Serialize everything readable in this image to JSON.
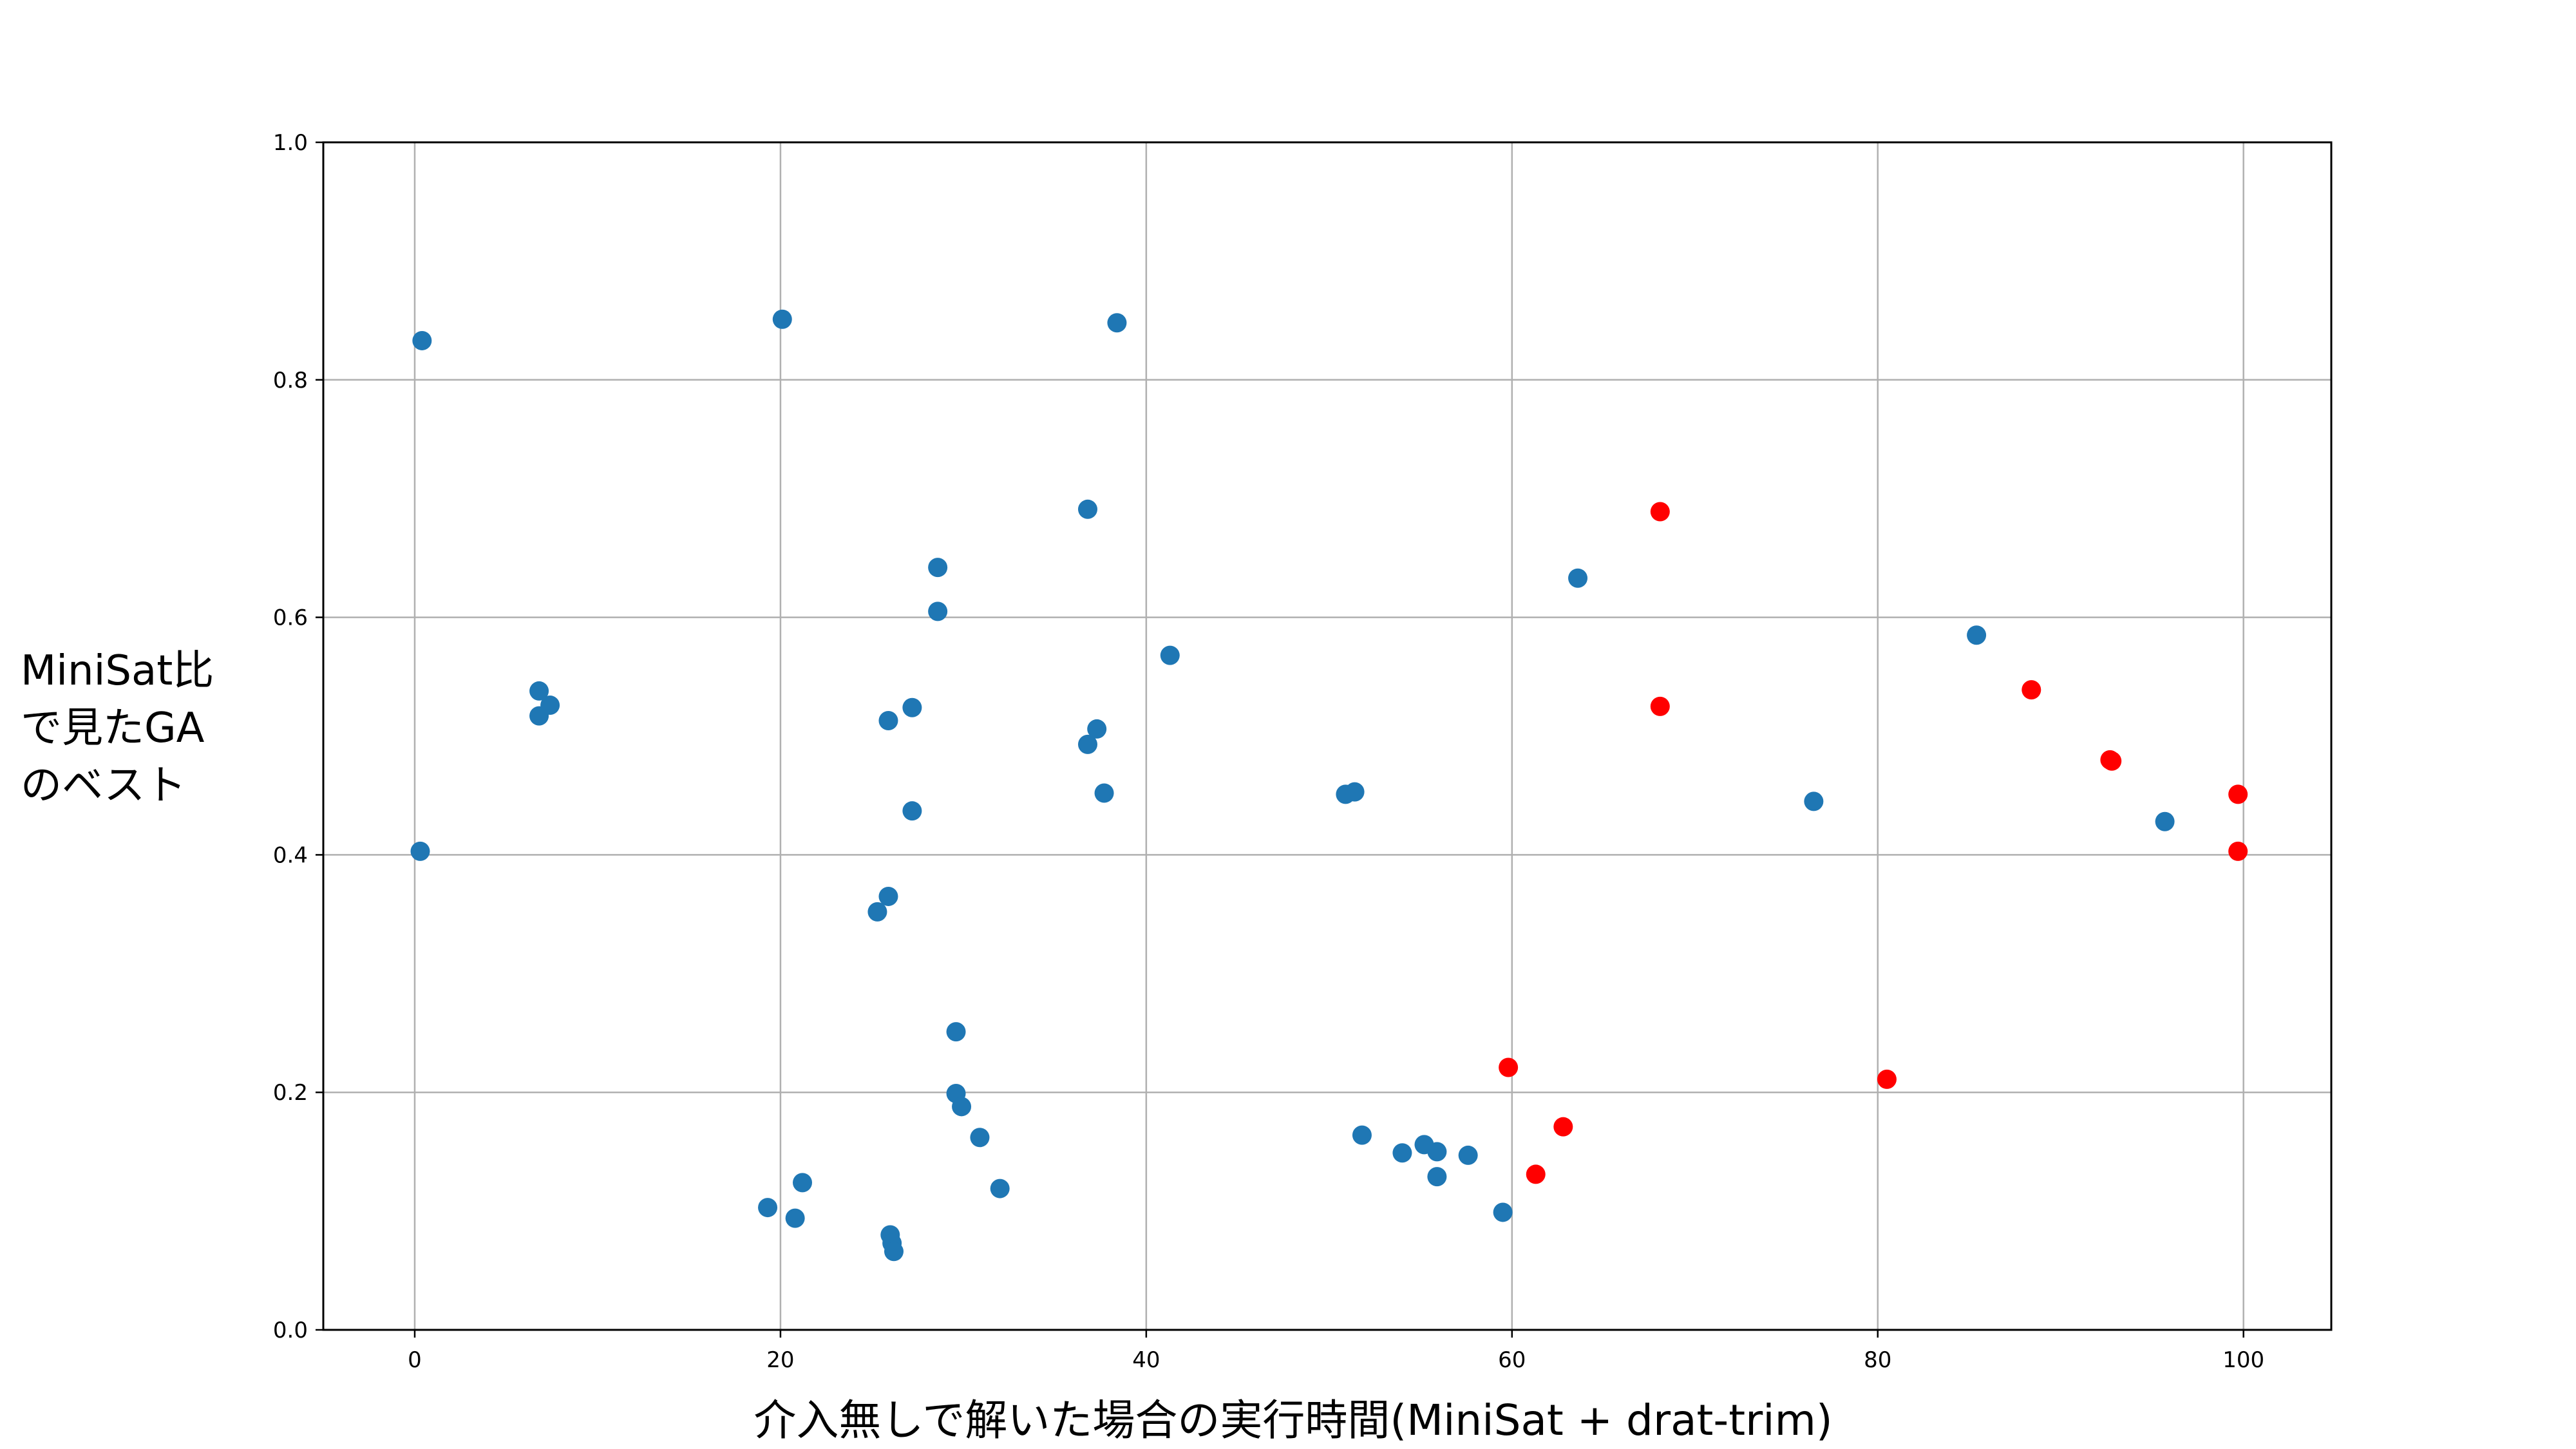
{
  "chart_data": {
    "type": "scatter",
    "title": "",
    "xlabel": "介入無しで解いた場合の実行時間(MiniSat + drat-trim)",
    "ylabel_lines": [
      "MiniSat比",
      "で見たGA",
      "のベスト"
    ],
    "xlim": [
      -5,
      104.8
    ],
    "ylim": [
      0.0,
      1.0
    ],
    "xticks": [
      0,
      20,
      40,
      60,
      80,
      100
    ],
    "yticks": [
      0.0,
      0.2,
      0.4,
      0.6,
      0.8,
      1.0
    ],
    "xtick_labels": [
      "0",
      "20",
      "40",
      "60",
      "80",
      "100"
    ],
    "ytick_labels": [
      "0.0",
      "0.2",
      "0.4",
      "0.6",
      "0.8",
      "1.0"
    ],
    "grid": true,
    "series": [
      {
        "color": "#1f77b4",
        "points": [
          [
            0.4,
            0.833
          ],
          [
            0.3,
            0.403
          ],
          [
            6.8,
            0.538
          ],
          [
            6.8,
            0.517
          ],
          [
            7.4,
            0.526
          ],
          [
            19.3,
            0.103
          ],
          [
            20.1,
            0.851
          ],
          [
            20.8,
            0.094
          ],
          [
            21.2,
            0.124
          ],
          [
            25.3,
            0.352
          ],
          [
            25.9,
            0.513
          ],
          [
            25.9,
            0.365
          ],
          [
            26.0,
            0.08
          ],
          [
            26.1,
            0.073
          ],
          [
            26.2,
            0.066
          ],
          [
            27.2,
            0.524
          ],
          [
            27.2,
            0.437
          ],
          [
            28.6,
            0.642
          ],
          [
            28.6,
            0.605
          ],
          [
            29.6,
            0.251
          ],
          [
            29.6,
            0.199
          ],
          [
            29.9,
            0.188
          ],
          [
            30.9,
            0.162
          ],
          [
            32.0,
            0.119
          ],
          [
            36.8,
            0.691
          ],
          [
            36.8,
            0.493
          ],
          [
            37.3,
            0.506
          ],
          [
            37.7,
            0.452
          ],
          [
            38.4,
            0.848
          ],
          [
            41.3,
            0.568
          ],
          [
            50.9,
            0.451
          ],
          [
            51.4,
            0.453
          ],
          [
            51.8,
            0.164
          ],
          [
            54.0,
            0.149
          ],
          [
            55.2,
            0.156
          ],
          [
            55.9,
            0.15
          ],
          [
            55.9,
            0.129
          ],
          [
            57.6,
            0.147
          ],
          [
            59.5,
            0.099
          ],
          [
            63.6,
            0.633
          ],
          [
            76.5,
            0.445
          ],
          [
            85.4,
            0.585
          ],
          [
            95.7,
            0.428
          ]
        ]
      },
      {
        "color": "#ff0000",
        "points": [
          [
            59.8,
            0.221
          ],
          [
            61.3,
            0.131
          ],
          [
            62.8,
            0.171
          ],
          [
            68.1,
            0.689
          ],
          [
            68.1,
            0.525
          ],
          [
            80.5,
            0.211
          ],
          [
            88.4,
            0.539
          ],
          [
            92.7,
            0.48
          ],
          [
            92.8,
            0.479
          ],
          [
            99.7,
            0.451
          ],
          [
            99.7,
            0.403
          ]
        ]
      }
    ]
  }
}
